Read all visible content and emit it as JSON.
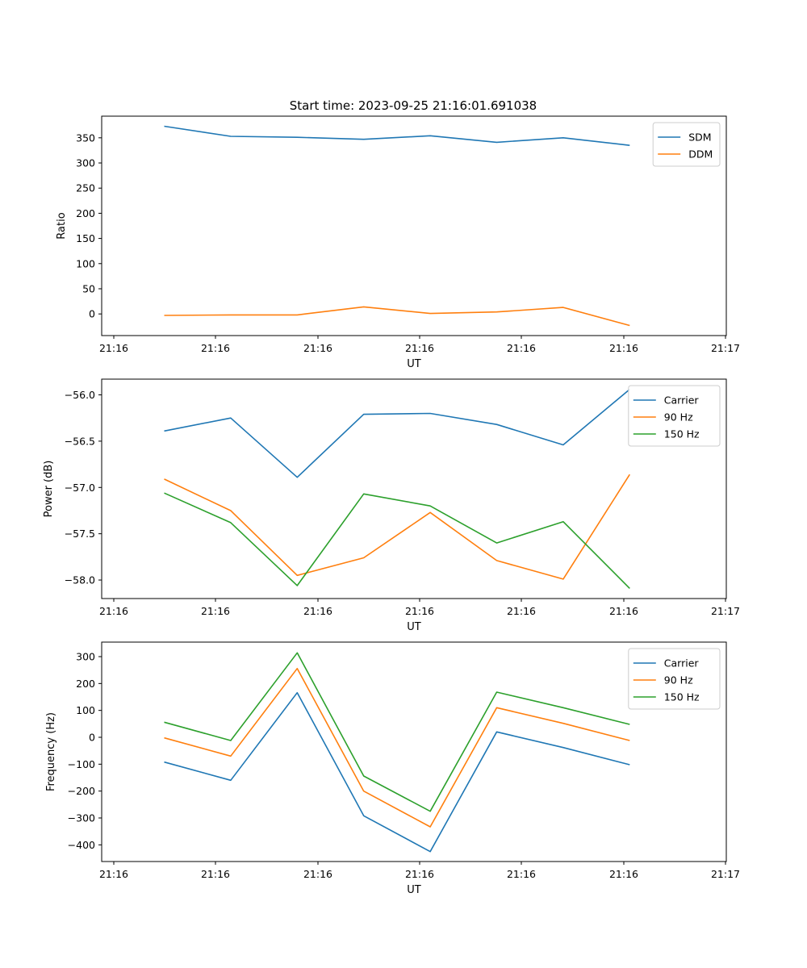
{
  "title": "Start time: 2023-09-25 21:16:01.691038",
  "chart_data": [
    {
      "type": "line",
      "xlabel": "UT",
      "ylabel": "Ratio",
      "x_tick_labels": [
        "21:16",
        "21:16",
        "21:16",
        "21:16",
        "21:16",
        "21:16",
        "21:17"
      ],
      "ylim": [
        -43,
        393
      ],
      "yticks": [
        0,
        50,
        100,
        150,
        200,
        250,
        300,
        350
      ],
      "legend_loc": "upper right",
      "series": [
        {
          "name": "SDM",
          "color": "#1f77b4",
          "values": [
            373,
            353,
            351,
            347,
            354,
            341,
            350,
            335
          ]
        },
        {
          "name": "DDM",
          "color": "#ff7f0e",
          "values": [
            -3,
            -2,
            -2,
            14,
            1,
            4,
            13,
            -23
          ]
        }
      ]
    },
    {
      "type": "line",
      "xlabel": "UT",
      "ylabel": "Power (dB)",
      "x_tick_labels": [
        "21:16",
        "21:16",
        "21:16",
        "21:16",
        "21:16",
        "21:16",
        "21:17"
      ],
      "ylim": [
        -58.2,
        -55.83
      ],
      "yticks": [
        -58.0,
        -57.5,
        -57.0,
        -56.5,
        -56.0
      ],
      "legend_loc": "upper right",
      "series": [
        {
          "name": "Carrier",
          "color": "#1f77b4",
          "values": [
            -56.39,
            -56.25,
            -56.89,
            -56.21,
            -56.2,
            -56.32,
            -56.54,
            -55.94
          ]
        },
        {
          "name": "90 Hz",
          "color": "#ff7f0e",
          "values": [
            -56.91,
            -57.25,
            -57.95,
            -57.76,
            -57.27,
            -57.79,
            -57.99,
            -56.86
          ]
        },
        {
          "name": "150 Hz",
          "color": "#2ca02c",
          "values": [
            -57.06,
            -57.38,
            -58.06,
            -57.07,
            -57.2,
            -57.6,
            -57.37,
            -58.09
          ]
        }
      ]
    },
    {
      "type": "line",
      "xlabel": "UT",
      "ylabel": "Frequency (Hz)",
      "x_tick_labels": [
        "21:16",
        "21:16",
        "21:16",
        "21:16",
        "21:16",
        "21:16",
        "21:17"
      ],
      "ylim": [
        -462,
        354
      ],
      "yticks": [
        -400,
        -300,
        -200,
        -100,
        0,
        100,
        200,
        300
      ],
      "legend_loc": "upper right",
      "series": [
        {
          "name": "Carrier",
          "color": "#1f77b4",
          "values": [
            -92,
            -160,
            166,
            -292,
            -425,
            20,
            -38,
            -102
          ]
        },
        {
          "name": "90 Hz",
          "color": "#ff7f0e",
          "values": [
            -2,
            -70,
            256,
            -200,
            -333,
            110,
            52,
            -12
          ]
        },
        {
          "name": "150 Hz",
          "color": "#2ca02c",
          "values": [
            56,
            -12,
            314,
            -144,
            -275,
            168,
            110,
            48
          ]
        }
      ]
    }
  ]
}
